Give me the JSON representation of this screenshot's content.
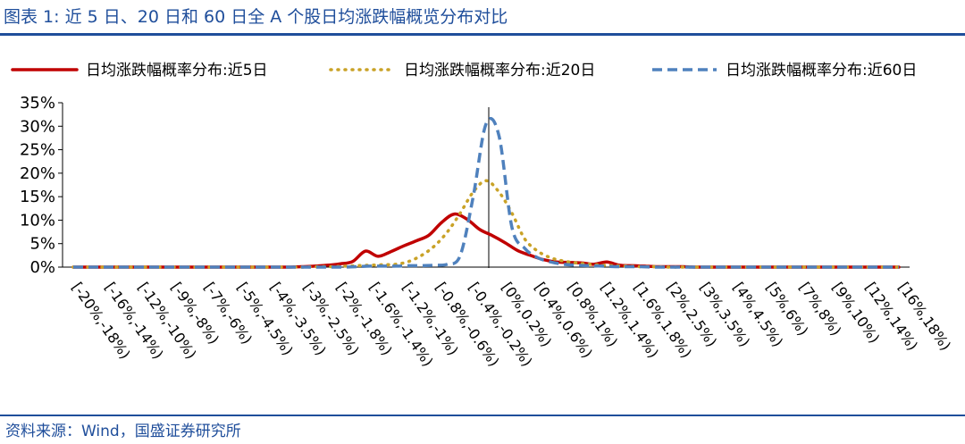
{
  "header": {
    "title": "图表 1:  近 5 日、20 日和 60 日全 A 个股日均涨跌幅概览分布对比"
  },
  "footer": {
    "source": "资料来源：Wind，国盛证券研究所"
  },
  "colors": {
    "accent": "#1f4e9b",
    "s5": "#c00000",
    "s20": "#c9a227",
    "s60": "#4f81bd"
  },
  "chart_data": {
    "type": "line",
    "ylim": [
      0,
      35
    ],
    "yticks": [
      "0%",
      "5%",
      "10%",
      "15%",
      "20%",
      "25%",
      "30%",
      "35%"
    ],
    "x_labels": [
      "[-20%,-18%)",
      "[-16%,-14%)",
      "[-12%,-10%)",
      "[-9%,-8%)",
      "[-7%,-6%)",
      "[-5%,-4.5%)",
      "[-4%,-3.5%)",
      "[-3%,-2.5%)",
      "[-2%,-1.8%)",
      "[-1.6%,-1.4%)",
      "[-1.2%,-1%)",
      "[-0.8%,-0.6%)",
      "[-0.4%,-0.2%)",
      "[0%,0.2%)",
      "[0.4%,0.6%)",
      "[0.8%,1%)",
      "[1.2%,1.4%)",
      "[1.6%,1.8%)",
      "[2%,2.5%)",
      "[3%,3.5%)",
      "[4%,4.5%)",
      "[5%,6%)",
      "[7%,8%)",
      "[9%,10%)",
      "[12%,14%)",
      "[16%,18%)"
    ],
    "legend": {
      "placement": "top"
    },
    "series": [
      {
        "name": "日均涨跌幅概率分布:近5日",
        "color": "#c00000",
        "dash": "solid",
        "values": [
          0,
          0,
          0,
          0,
          0,
          0,
          0,
          0,
          0,
          0,
          0,
          0,
          0,
          0,
          0,
          0,
          0,
          0,
          0.1,
          0.2,
          0.4,
          0.7,
          1.2,
          3.4,
          2.3,
          3.3,
          4.5,
          5.6,
          6.8,
          9.5,
          11.3,
          10.2,
          8.0,
          6.7,
          5.2,
          3.5,
          2.5,
          1.6,
          1.1,
          1.0,
          0.9,
          0.6,
          1.1,
          0.4,
          0.3,
          0.2,
          0.1,
          0.1,
          0.1,
          0,
          0,
          0,
          0,
          0,
          0,
          0,
          0,
          0,
          0,
          0,
          0,
          0,
          0,
          0,
          0,
          0
        ]
      },
      {
        "name": "日均涨跌幅概率分布:近20日",
        "color": "#c9a227",
        "dash": "dot",
        "values": [
          0,
          0,
          0,
          0,
          0,
          0,
          0,
          0,
          0,
          0,
          0,
          0,
          0,
          0,
          0,
          0,
          0,
          0,
          0,
          0.1,
          0.1,
          0.2,
          0.3,
          0.4,
          0.5,
          0.6,
          1.2,
          2.5,
          4.5,
          7.5,
          11.5,
          16.0,
          18.4,
          16.0,
          11.5,
          6.0,
          3.4,
          2.0,
          1.3,
          0.9,
          0.6,
          0.4,
          0.3,
          0.2,
          0.1,
          0.1,
          0,
          0,
          0,
          0,
          0,
          0,
          0,
          0,
          0,
          0,
          0,
          0,
          0,
          0,
          0,
          0,
          0,
          0,
          0
        ]
      },
      {
        "name": "日均涨跌幅概率分布:近60日",
        "color": "#4f81bd",
        "dash": "dash",
        "values": [
          0,
          0,
          0,
          0,
          0,
          0,
          0,
          0,
          0,
          0,
          0,
          0,
          0,
          0,
          0,
          0,
          0,
          0,
          0,
          0,
          0,
          0,
          0.1,
          0.2,
          0.2,
          0.2,
          0.3,
          0.3,
          0.4,
          0.6,
          2.5,
          15.0,
          30.5,
          28.0,
          8.5,
          4.0,
          2.0,
          1.1,
          0.6,
          0.4,
          0.3,
          0.2,
          0.1,
          0.1,
          0.1,
          0,
          0,
          0,
          0,
          0,
          0,
          0,
          0,
          0,
          0,
          0,
          0,
          0,
          0,
          0,
          0,
          0,
          0,
          0,
          0
        ]
      }
    ]
  }
}
